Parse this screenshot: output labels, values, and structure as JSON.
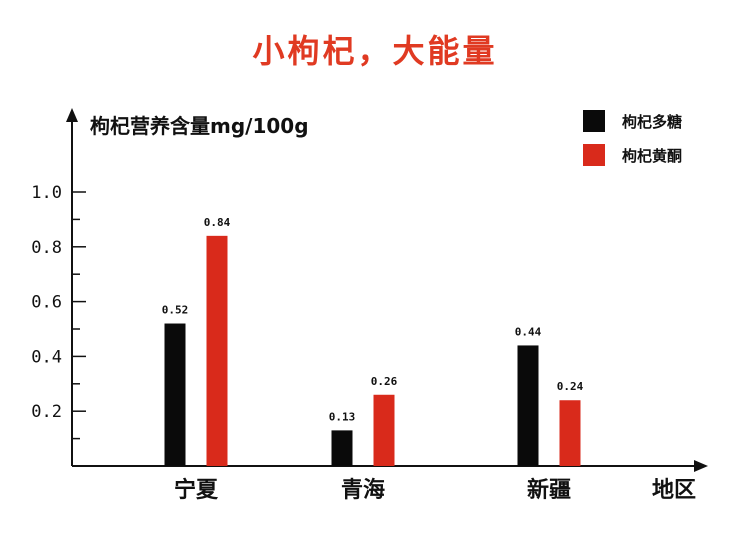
{
  "title": "小枸杞，大能量",
  "colors": {
    "title": "#e03a22",
    "sugar": "#0a0a0a",
    "flavone": "#d92a1b",
    "axis": "#111111"
  },
  "chart_data": {
    "type": "bar",
    "ylabel": "枸杞营养含量mg/100g",
    "xlabel": "地区",
    "categories": [
      "宁夏",
      "青海",
      "新疆"
    ],
    "y_ticks": [
      "0.2",
      "0.4",
      "0.6",
      "0.8",
      "1.0"
    ],
    "ylim": [
      0,
      1.0
    ],
    "series": [
      {
        "name": "枸杞多糖",
        "color": "#0a0a0a",
        "values": [
          0.52,
          0.13,
          0.44
        ],
        "labels": [
          "0.52",
          "0.13",
          "0.44"
        ]
      },
      {
        "name": "枸杞黄酮",
        "color": "#d92a1b",
        "values": [
          0.84,
          0.26,
          0.24
        ],
        "labels": [
          "0.84",
          "0.26",
          "0.24"
        ]
      }
    ],
    "legend_position": "top-right",
    "grid": false
  }
}
